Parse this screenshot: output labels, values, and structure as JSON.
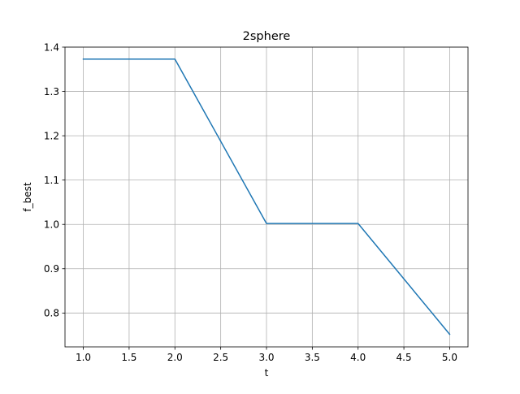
{
  "chart_data": {
    "type": "line",
    "title": "2sphere",
    "xlabel": "t",
    "ylabel": "f_best",
    "xlim": [
      0.8,
      5.2
    ],
    "ylim": [
      0.7236,
      1.4
    ],
    "xticks": [
      1.0,
      1.5,
      2.0,
      2.5,
      3.0,
      3.5,
      4.0,
      4.5,
      5.0
    ],
    "xtick_labels": [
      "1.0",
      "1.5",
      "2.0",
      "2.5",
      "3.0",
      "3.5",
      "4.0",
      "4.5",
      "5.0"
    ],
    "yticks": [
      0.8,
      0.9,
      1.0,
      1.1,
      1.2,
      1.3,
      1.4
    ],
    "ytick_labels": [
      "0.8",
      "0.9",
      "1.0",
      "1.1",
      "1.2",
      "1.3",
      "1.4"
    ],
    "grid": true,
    "series": [
      {
        "color": "#1f77b4",
        "x": [
          1.0,
          2.0,
          3.0,
          4.0,
          5.0
        ],
        "y": [
          1.373,
          1.373,
          1.002,
          1.002,
          0.752
        ]
      }
    ]
  }
}
